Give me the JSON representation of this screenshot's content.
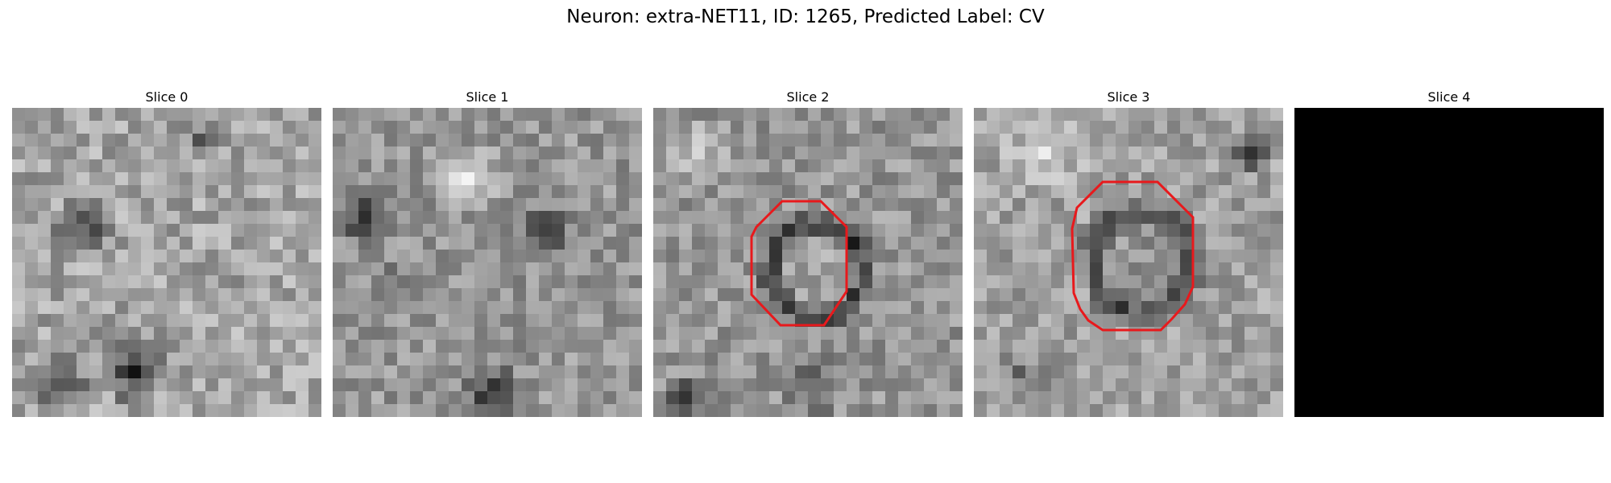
{
  "figure": {
    "title": "Neuron: extra-NET11, ID: 1265, Predicted Label: CV"
  },
  "panels": [
    {
      "title": "Slice 0",
      "image": "grayscale-microscopy-patch",
      "blank": false,
      "contour": false
    },
    {
      "title": "Slice 1",
      "image": "grayscale-microscopy-patch",
      "blank": false,
      "contour": false
    },
    {
      "title": "Slice 2",
      "image": "grayscale-microscopy-patch",
      "blank": false,
      "contour": true
    },
    {
      "title": "Slice 3",
      "image": "grayscale-microscopy-patch",
      "blank": false,
      "contour": true
    },
    {
      "title": "Slice 4",
      "image": "black-patch",
      "blank": true,
      "contour": false
    }
  ],
  "colors": {
    "contour": "#e8191c",
    "background": "#ffffff",
    "blank": "#000000"
  }
}
